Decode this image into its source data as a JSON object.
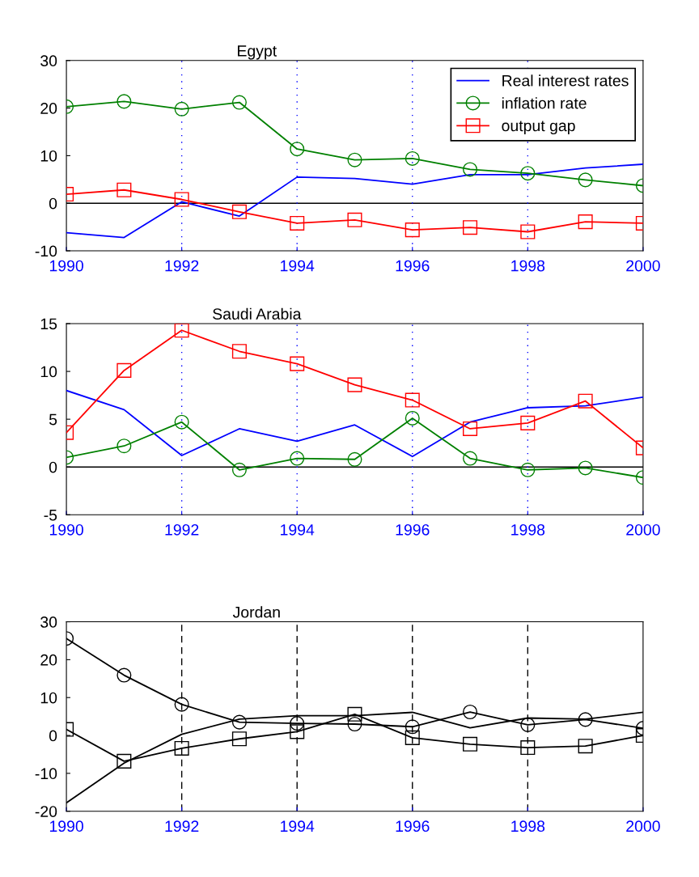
{
  "chart_data": [
    {
      "type": "line",
      "title": "Egypt",
      "x": [
        1990,
        1991,
        1992,
        1993,
        1994,
        1995,
        1996,
        1997,
        1998,
        1999,
        2000
      ],
      "xlim": [
        1990,
        2000
      ],
      "xticks": [
        1990,
        1992,
        1994,
        1996,
        1998,
        2000
      ],
      "ylim": [
        -10,
        30
      ],
      "yticks": [
        -10,
        0,
        10,
        20,
        30
      ],
      "legend": "top right",
      "series": [
        {
          "name": "Real interest rates",
          "color": "#0000ff",
          "marker": "none",
          "values": [
            -6.2,
            -7.2,
            0.3,
            -2.7,
            5.5,
            5.2,
            4.0,
            6.0,
            6.0,
            7.4,
            8.2
          ]
        },
        {
          "name": "inflation rate",
          "color": "#008000",
          "marker": "circle",
          "values": [
            20.3,
            21.4,
            19.8,
            21.2,
            11.4,
            9.1,
            9.4,
            7.1,
            6.3,
            4.9,
            3.7
          ]
        },
        {
          "name": "output gap",
          "color": "#ff0000",
          "marker": "square",
          "values": [
            1.9,
            2.8,
            0.8,
            -1.8,
            -4.2,
            -3.5,
            -5.6,
            -5.1,
            -6.0,
            -3.9,
            -4.2
          ]
        }
      ],
      "ref_lines": [
        {
          "axis": "y",
          "value": 0,
          "color": "#000000",
          "line_style": "solid"
        },
        {
          "axis": "x",
          "value": 1992,
          "color": "#0000ff",
          "line_style": "dotted"
        },
        {
          "axis": "x",
          "value": 1994,
          "color": "#0000ff",
          "line_style": "dotted"
        },
        {
          "axis": "x",
          "value": 1996,
          "color": "#0000ff",
          "line_style": "dotted"
        },
        {
          "axis": "x",
          "value": 1998,
          "color": "#0000ff",
          "line_style": "dotted"
        }
      ]
    },
    {
      "type": "line",
      "title": "Saudi Arabia",
      "x": [
        1990,
        1991,
        1992,
        1993,
        1994,
        1995,
        1996,
        1997,
        1998,
        1999,
        2000
      ],
      "xlim": [
        1990,
        2000
      ],
      "xticks": [
        1990,
        1992,
        1994,
        1996,
        1998,
        2000
      ],
      "ylim": [
        -5,
        15
      ],
      "yticks": [
        -5,
        0,
        5,
        10,
        15
      ],
      "series": [
        {
          "color": "#0000ff",
          "marker": "none",
          "values": [
            8.0,
            6.0,
            1.2,
            4.0,
            2.7,
            4.4,
            1.1,
            4.7,
            6.2,
            6.4,
            7.3
          ]
        },
        {
          "color": "#008000",
          "marker": "circle",
          "values": [
            1.0,
            2.2,
            4.7,
            -0.3,
            0.9,
            0.8,
            5.1,
            0.9,
            -0.3,
            -0.1,
            -1.1
          ]
        },
        {
          "color": "#ff0000",
          "marker": "square",
          "values": [
            3.6,
            10.1,
            14.3,
            12.1,
            10.8,
            8.6,
            7.0,
            4.0,
            4.6,
            6.9,
            2.0
          ]
        }
      ],
      "ref_lines": [
        {
          "axis": "y",
          "value": 0,
          "color": "#000000",
          "line_style": "solid"
        },
        {
          "axis": "x",
          "value": 1992,
          "color": "#0000ff",
          "line_style": "dotted"
        },
        {
          "axis": "x",
          "value": 1994,
          "color": "#0000ff",
          "line_style": "dotted"
        },
        {
          "axis": "x",
          "value": 1996,
          "color": "#0000ff",
          "line_style": "dotted"
        },
        {
          "axis": "x",
          "value": 1998,
          "color": "#0000ff",
          "line_style": "dotted"
        }
      ]
    },
    {
      "type": "line",
      "title": "Jordan",
      "x": [
        1990,
        1991,
        1992,
        1993,
        1994,
        1995,
        1996,
        1997,
        1998,
        1999,
        2000
      ],
      "xlim": [
        1990,
        2000
      ],
      "xticks": [
        1990,
        1992,
        1994,
        1996,
        1998,
        2000
      ],
      "ylim": [
        -20,
        30
      ],
      "yticks": [
        -20,
        -10,
        0,
        10,
        20,
        30
      ],
      "series": [
        {
          "color": "#000000",
          "marker": "none",
          "values": [
            -17.8,
            -7.3,
            0.3,
            4.3,
            5.2,
            5.2,
            6.1,
            2.0,
            4.6,
            4.3,
            6.1
          ]
        },
        {
          "color": "#000000",
          "marker": "circle",
          "values": [
            25.6,
            15.9,
            8.2,
            3.5,
            3.2,
            3.0,
            2.3,
            6.2,
            2.8,
            4.2,
            1.9
          ]
        },
        {
          "color": "#000000",
          "marker": "square",
          "values": [
            1.6,
            -6.8,
            -3.4,
            -0.9,
            1.0,
            5.6,
            -0.6,
            -2.3,
            -3.2,
            -2.8,
            0.0
          ]
        }
      ],
      "ref_lines": [
        {
          "axis": "x",
          "value": 1992,
          "color": "#000000",
          "line_style": "dashed"
        },
        {
          "axis": "x",
          "value": 1994,
          "color": "#000000",
          "line_style": "dashed"
        },
        {
          "axis": "x",
          "value": 1996,
          "color": "#000000",
          "line_style": "dashed"
        },
        {
          "axis": "x",
          "value": 1998,
          "color": "#000000",
          "line_style": "dashed"
        }
      ]
    }
  ]
}
